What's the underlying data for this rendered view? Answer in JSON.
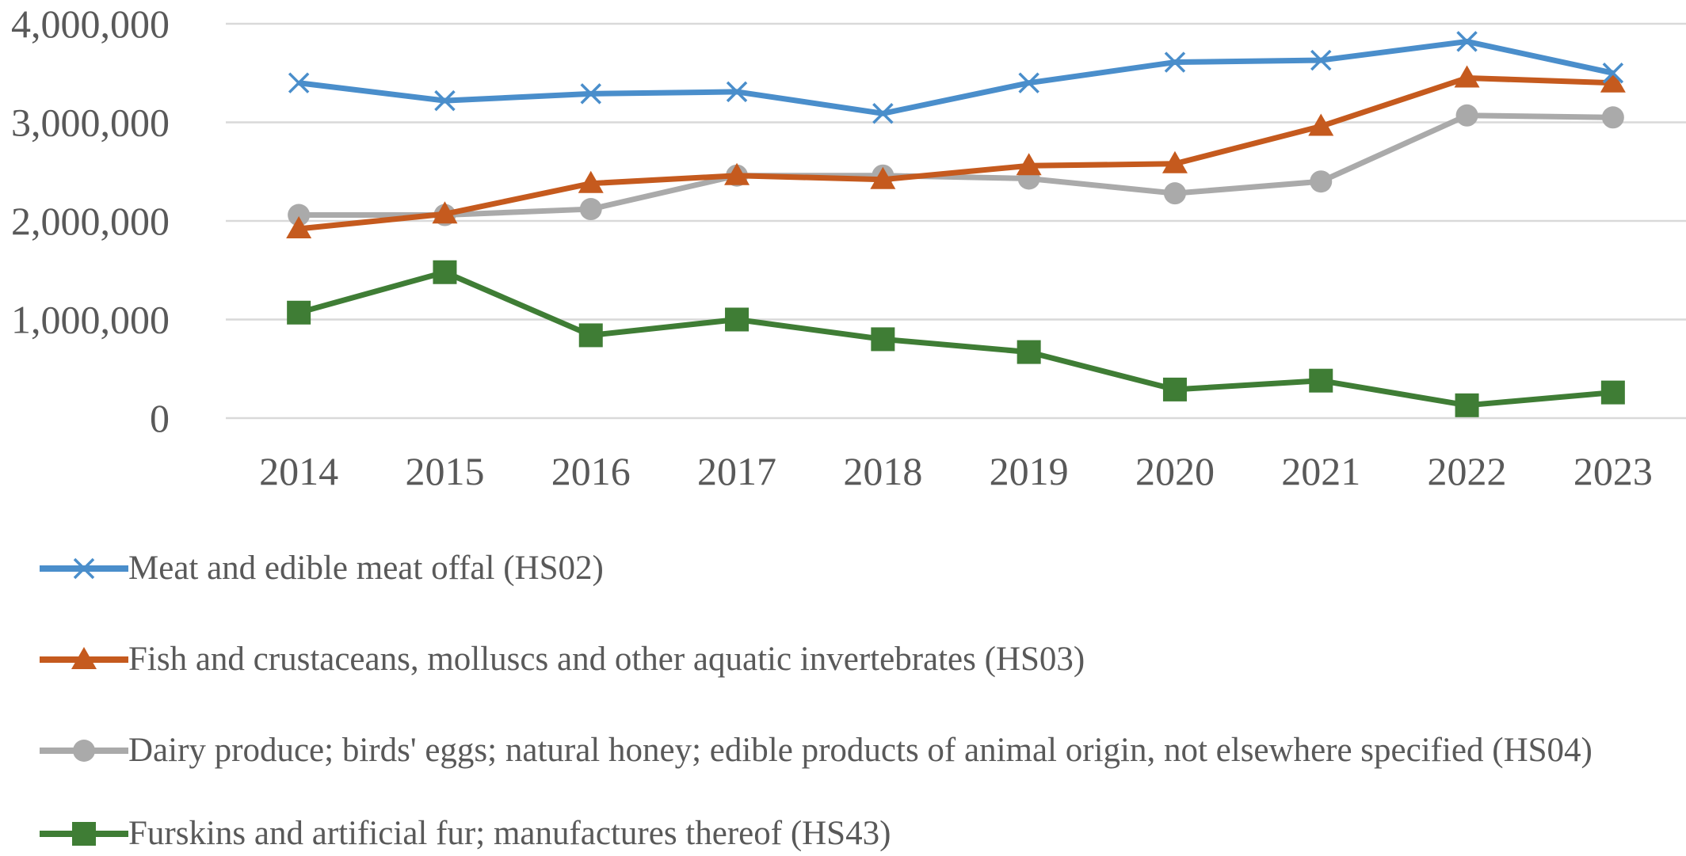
{
  "chart_data": {
    "type": "line",
    "title": "",
    "xlabel": "",
    "ylabel": "",
    "x": [
      "2014",
      "2015",
      "2016",
      "2017",
      "2018",
      "2019",
      "2020",
      "2021",
      "2022",
      "2023"
    ],
    "ylim": [
      0,
      4000000
    ],
    "yticks": [
      0,
      1000000,
      2000000,
      3000000,
      4000000
    ],
    "ytick_labels": [
      "0",
      "1,000,000",
      "2,000,000",
      "3,000,000",
      "4,000,000"
    ],
    "grid": "horizontal",
    "legend_position": "bottom",
    "series": [
      {
        "name": "Meat and edible meat offal (HS02)",
        "color": "#4a8ecb",
        "marker": "x",
        "values": [
          3400000,
          3220000,
          3290000,
          3310000,
          3090000,
          3400000,
          3610000,
          3630000,
          3820000,
          3500000
        ]
      },
      {
        "name": "Fish and crustaceans, molluscs and other aquatic invertebrates (HS03)",
        "color": "#c55a1e",
        "marker": "triangle",
        "values": [
          1920000,
          2070000,
          2380000,
          2460000,
          2420000,
          2560000,
          2580000,
          2960000,
          3450000,
          3400000
        ]
      },
      {
        "name": "Dairy produce; birds' eggs; natural honey; edible products of animal origin, not elsewhere specified (HS04)",
        "color": "#aaaaaa",
        "marker": "circle",
        "values": [
          2060000,
          2060000,
          2120000,
          2460000,
          2460000,
          2430000,
          2280000,
          2400000,
          3070000,
          3050000
        ]
      },
      {
        "name": "Furskins and artificial fur; manufactures thereof (HS43)",
        "color": "#3f7d35",
        "marker": "square",
        "values": [
          1070000,
          1480000,
          840000,
          1000000,
          800000,
          670000,
          290000,
          380000,
          130000,
          260000
        ]
      }
    ]
  }
}
